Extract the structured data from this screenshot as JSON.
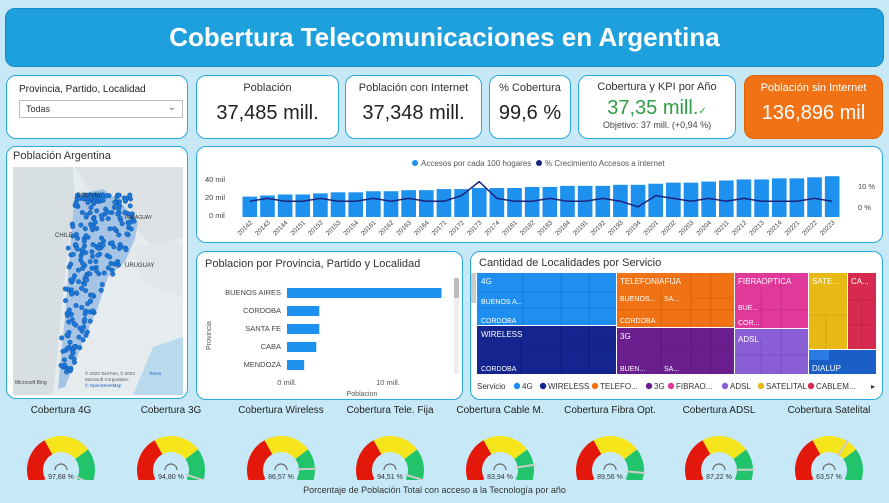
{
  "header": {
    "title": "Cobertura Telecomunicaciones en Argentina"
  },
  "filter": {
    "label": "Provincia, Partido, Localidad",
    "value": "Todas"
  },
  "kpis": {
    "poblacion": {
      "label": "Población",
      "value": "37,485 mill."
    },
    "poblacion_internet": {
      "label": "Población con Internet",
      "value": "37,348 mill."
    },
    "cobertura": {
      "label": "% Cobertura",
      "value": "99,6 %"
    },
    "kpi_anio": {
      "label": "Cobertura y KPI por Año",
      "value": "37,35 mill.",
      "check": "✓",
      "objective": "Objetivo: 37 mill. (+0,94 %)"
    },
    "sin_internet": {
      "label": "Población sin Internet",
      "value": "136,896 mil"
    }
  },
  "map": {
    "title": "Población Argentina",
    "labels": [
      "BOLIVIA",
      "CHILE",
      "PARAGUAY",
      "URUGUAY"
    ],
    "attribution": [
      "© 2023 TomTom, © 2023",
      "Microsoft Corporation,",
      "© OpenStreetMap"
    ],
    "terms": "Terms",
    "bing": "Microsoft Bing"
  },
  "combo_chart": {
    "legend": [
      "Accesos por cada 100 hogares",
      "% Crecimiento Accesos a internet"
    ],
    "y_left": [
      "40 mil",
      "20 mil",
      "0 mil"
    ],
    "y_right": [
      "10 %",
      "0 %"
    ]
  },
  "bar_chart": {
    "title": "Poblacion por Provincia, Partido y Localidad",
    "ylabel": "Provincia",
    "xlabel": "Poblacion",
    "xticks": [
      "0 mill.",
      "10 mill."
    ]
  },
  "treemap": {
    "title": "Cantidad de Localidades por Servicio",
    "legend_title": "Servicio",
    "legend": [
      "4G",
      "WIRELESS",
      "TELEFO...",
      "3G",
      "FIBRAO...",
      "ADSL",
      "SATELITAL",
      "CABLEM..."
    ],
    "cells": [
      {
        "service": "4G",
        "label": "4G",
        "sub1": "BUENOS A...",
        "sub2": "CORDOBA"
      },
      {
        "service": "WIRELESS",
        "label": "WIRELESS",
        "sub1": "CORDOBA"
      },
      {
        "service": "TELEFONIAFIJA",
        "label": "TELEFONIAFIJA",
        "sub1": "BUENOS...",
        "sub1b": "SA...",
        "sub2": "CORDOBA"
      },
      {
        "service": "3G",
        "label": "3G",
        "sub1": "BUEN...",
        "sub1b": "SA..."
      },
      {
        "service": "FIBRAOPTICA",
        "label": "FIBRAOPTICA",
        "sub1": "BUE...",
        "sub2": "COR..."
      },
      {
        "service": "ADSL",
        "label": "ADSL"
      },
      {
        "service": "SATELITAL",
        "label": "SATE..."
      },
      {
        "service": "CABLEMODEM",
        "label": "CA..."
      },
      {
        "service": "DIALUP",
        "label": "DIALUP"
      }
    ]
  },
  "gauges": [
    {
      "title": "Cobertura 4G",
      "value": "97,68 %",
      "pct": 97.68
    },
    {
      "title": "Cobertura 3G",
      "value": "94,80 %",
      "pct": 94.8
    },
    {
      "title": "Cobertura Wireless",
      "value": "86,57 %",
      "pct": 86.57
    },
    {
      "title": "Cobertura Tele. Fija",
      "value": "94,51 %",
      "pct": 94.51
    },
    {
      "title": "Cobertura Cable M.",
      "value": "83,94 %",
      "pct": 83.94
    },
    {
      "title": "Cobertura Fibra Opt.",
      "value": "89,56 %",
      "pct": 89.56
    },
    {
      "title": "Cobertura ADSL",
      "value": "87,22 %",
      "pct": 87.22
    },
    {
      "title": "Cobertura Satelital",
      "value": "63,57 %",
      "pct": 63.57
    }
  ],
  "footer": {
    "caption": "Porcentaje de Población Total con acceso a la Tecnología por año"
  },
  "colors": {
    "accent": "#1ea0dd",
    "bar": "#1e90ee",
    "line": "#1a237e",
    "kpi_green": "#2e9e46",
    "kpi_orange": "#f07214",
    "svc_4g": "#1e8ff0",
    "svc_wireless": "#14258f",
    "svc_telefonia": "#f07214",
    "svc_3g": "#6b1f8f",
    "svc_fibra": "#e0399a",
    "svc_adsl": "#8a5fd6",
    "svc_satelital": "#e8b914",
    "svc_cable": "#d62a4f",
    "svc_dialup": "#1a5fc8"
  },
  "chart_data": [
    {
      "type": "bar",
      "title": "",
      "categories": [
        "20142",
        "20143",
        "20144",
        "20151",
        "20152",
        "20153",
        "20154",
        "20161",
        "20162",
        "20163",
        "20164",
        "20171",
        "20172",
        "20173",
        "20174",
        "20181",
        "20182",
        "20183",
        "20184",
        "20191",
        "20192",
        "20193",
        "20194",
        "20201",
        "20202",
        "20203",
        "20204",
        "20211",
        "20212",
        "20213",
        "20214",
        "20221",
        "20222",
        "20223"
      ],
      "series": [
        {
          "name": "Accesos por cada 100 hogares",
          "values": [
            19,
            20,
            21,
            21,
            22,
            23,
            23,
            24,
            24,
            25,
            25,
            26,
            26,
            27,
            27,
            27,
            28,
            28,
            29,
            29,
            29,
            30,
            30,
            31,
            32,
            32,
            33,
            34,
            35,
            35,
            36,
            36,
            37,
            38
          ]
        },
        {
          "name": "% Crecimiento Accesos a internet",
          "values": [
            1,
            2,
            1,
            1,
            2,
            1,
            1,
            2,
            1,
            2,
            1,
            1,
            3,
            8,
            2,
            1,
            1,
            2,
            1,
            1,
            2,
            1,
            -1,
            3,
            2,
            1,
            2,
            1,
            2,
            1,
            1,
            1,
            2,
            1
          ]
        }
      ],
      "ylabel": "",
      "xlabel": "",
      "ylim": [
        0,
        45
      ]
    },
    {
      "type": "bar",
      "title": "Poblacion por Provincia, Partido y Localidad",
      "categories": [
        "BUENOS AIRES",
        "CORDOBA",
        "SANTA FE",
        "CABA",
        "MENDOZA"
      ],
      "values": [
        15.3,
        3.2,
        3.2,
        2.9,
        1.7
      ],
      "xlabel": "Poblacion",
      "ylabel": "Provincia",
      "xlim": [
        0,
        16
      ]
    }
  ]
}
